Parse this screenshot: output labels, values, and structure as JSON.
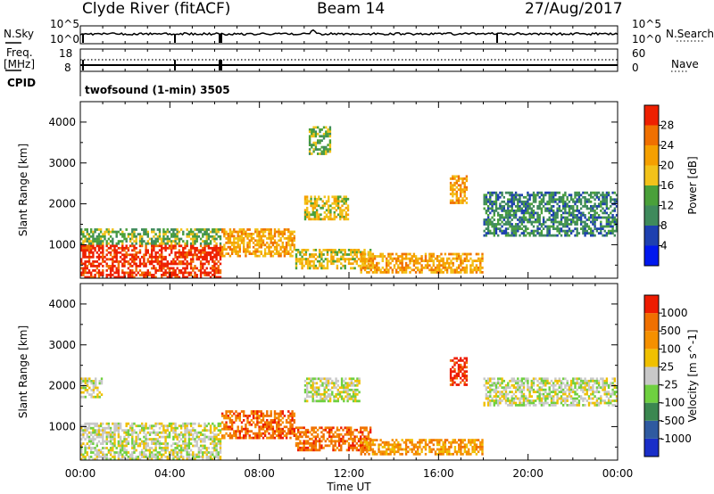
{
  "header": {
    "station": "Clyde River (fitACF)",
    "beam": "Beam 14",
    "date": "27/Aug/2017"
  },
  "strips": {
    "nsky_label": "N.Sky",
    "nsearch_label": "N.Search",
    "freq_label_1": "Freq.",
    "freq_label_2": "[MHz]",
    "nave_label": "Nave",
    "cpid_label": "CPID",
    "cpid_value": "twofsound (1-min) 3505",
    "noise_ticks_left": [
      "10^5",
      "10^0"
    ],
    "noise_ticks_right": [
      "10^5",
      "10^0"
    ],
    "freq_ticks_left": [
      "18",
      "8"
    ],
    "freq_ticks_right": [
      "60",
      "0"
    ]
  },
  "colors": {
    "power_scale": [
      "#0018ee",
      "#1e40b0",
      "#3f8a5c",
      "#4aa03a",
      "#f2c21a",
      "#f5a000",
      "#f07000",
      "#ee2000"
    ],
    "velocity_scale": [
      "#1a2ec8",
      "#2f5aa0",
      "#3b8750",
      "#6fd040",
      "#c8c8c8",
      "#f0c000",
      "#f59000",
      "#f07000",
      "#ee1c00"
    ]
  },
  "chart_data": [
    {
      "type": "heatmap",
      "panel": "power",
      "ylabel": "Slant Range [km]",
      "xlabel": "Time UT",
      "x_ticks": [
        "00:00",
        "04:00",
        "08:00",
        "12:00",
        "16:00",
        "20:00",
        "00:00"
      ],
      "y_ticks": [
        "1000",
        "2000",
        "3000",
        "4000"
      ],
      "ylim": [
        180,
        4500
      ],
      "xlim_hours": [
        0,
        24
      ],
      "colorbar_label": "Power [dB]",
      "colorbar_ticks": [
        "4",
        "8",
        "12",
        "16",
        "20",
        "24",
        "28"
      ],
      "scatter_regions": [
        {
          "t0": 0.0,
          "t1": 6.3,
          "r0": 180,
          "r1": 1000,
          "level": 7
        },
        {
          "t0": 0.0,
          "t1": 6.3,
          "r0": 1000,
          "r1": 1400,
          "level": 3
        },
        {
          "t0": 6.3,
          "t1": 9.6,
          "r0": 700,
          "r1": 1400,
          "level": 5
        },
        {
          "t0": 9.6,
          "t1": 13.0,
          "r0": 400,
          "r1": 900,
          "level": 4
        },
        {
          "t0": 12.5,
          "t1": 18.0,
          "r0": 300,
          "r1": 800,
          "level": 5
        },
        {
          "t0": 16.5,
          "t1": 17.3,
          "r0": 2000,
          "r1": 2700,
          "level": 5
        },
        {
          "t0": 10.2,
          "t1": 11.2,
          "r0": 3200,
          "r1": 3900,
          "level": 3
        },
        {
          "t0": 10.0,
          "t1": 12.0,
          "r0": 1600,
          "r1": 2200,
          "level": 4
        },
        {
          "t0": 18.0,
          "t1": 24.0,
          "r0": 1200,
          "r1": 2300,
          "level": 2
        }
      ]
    },
    {
      "type": "heatmap",
      "panel": "velocity",
      "ylabel": "Slant Range [km]",
      "xlabel": "Time UT",
      "x_ticks": [
        "00:00",
        "04:00",
        "08:00",
        "12:00",
        "16:00",
        "20:00",
        "00:00"
      ],
      "y_ticks": [
        "1000",
        "2000",
        "3000",
        "4000"
      ],
      "ylim": [
        180,
        4500
      ],
      "xlim_hours": [
        0,
        24
      ],
      "colorbar_label": "Velocity [m s^-1]",
      "colorbar_ticks": [
        "1000",
        "500",
        "100",
        "25",
        "-25",
        "-100",
        "-500",
        "-1000"
      ],
      "scatter_regions": [
        {
          "t0": 0.0,
          "t1": 6.3,
          "r0": 180,
          "r1": 1100,
          "level": 4
        },
        {
          "t0": 6.3,
          "t1": 9.6,
          "r0": 700,
          "r1": 1400,
          "level": 7
        },
        {
          "t0": 9.6,
          "t1": 13.0,
          "r0": 400,
          "r1": 1000,
          "level": 7
        },
        {
          "t0": 12.5,
          "t1": 18.0,
          "r0": 300,
          "r1": 700,
          "level": 6
        },
        {
          "t0": 16.5,
          "t1": 17.3,
          "r0": 2000,
          "r1": 2700,
          "level": 8
        },
        {
          "t0": 10.0,
          "t1": 12.5,
          "r0": 1600,
          "r1": 2200,
          "level": 4
        },
        {
          "t0": 18.0,
          "t1": 24.0,
          "r0": 1500,
          "r1": 2200,
          "level": 4
        },
        {
          "t0": 0.0,
          "t1": 1.0,
          "r0": 1700,
          "r1": 2200,
          "level": 4
        }
      ]
    }
  ]
}
